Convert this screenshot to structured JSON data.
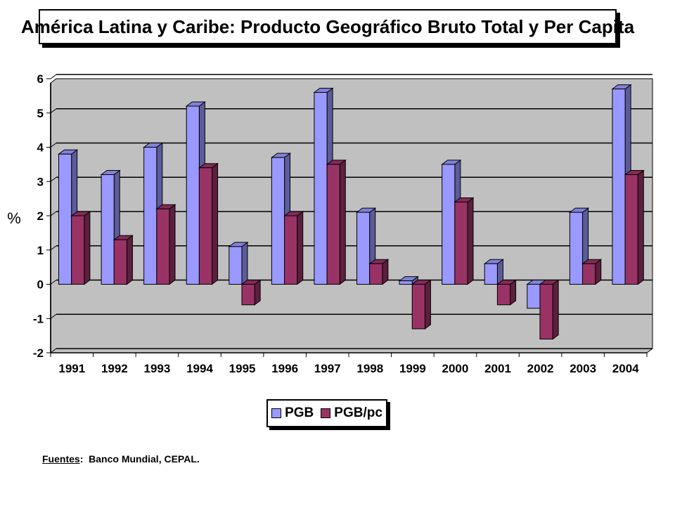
{
  "chart_data": {
    "type": "bar",
    "title": "América Latina y Caribe: Producto Geográfico Bruto Total y Per Capita",
    "ylabel": "%",
    "xlabel": "",
    "ylim": [
      -2,
      6
    ],
    "yticks": [
      6,
      5,
      4,
      3,
      2,
      1,
      0,
      -1,
      -2
    ],
    "categories": [
      "1991",
      "1992",
      "1993",
      "1994",
      "1995",
      "1996",
      "1997",
      "1998",
      "1999",
      "2000",
      "2001",
      "2002",
      "2003",
      "2004"
    ],
    "series": [
      {
        "name": "PGB",
        "color": "#9999ff",
        "values": [
          3.8,
          3.2,
          4.0,
          5.2,
          1.1,
          3.7,
          5.6,
          2.1,
          0.1,
          3.5,
          0.6,
          -0.7,
          2.1,
          5.7
        ]
      },
      {
        "name": "PGB/pc",
        "color": "#993366",
        "values": [
          2.0,
          1.3,
          2.2,
          3.4,
          -0.6,
          2.0,
          3.5,
          0.6,
          -1.3,
          2.4,
          -0.6,
          -1.6,
          0.6,
          3.2
        ]
      }
    ],
    "grid": true,
    "legend_position": "bottom-center",
    "plot_background": "#c0c0c0"
  },
  "source": {
    "label": "Fuentes",
    "separator": ":",
    "text": "Banco Mundial, CEPAL."
  }
}
